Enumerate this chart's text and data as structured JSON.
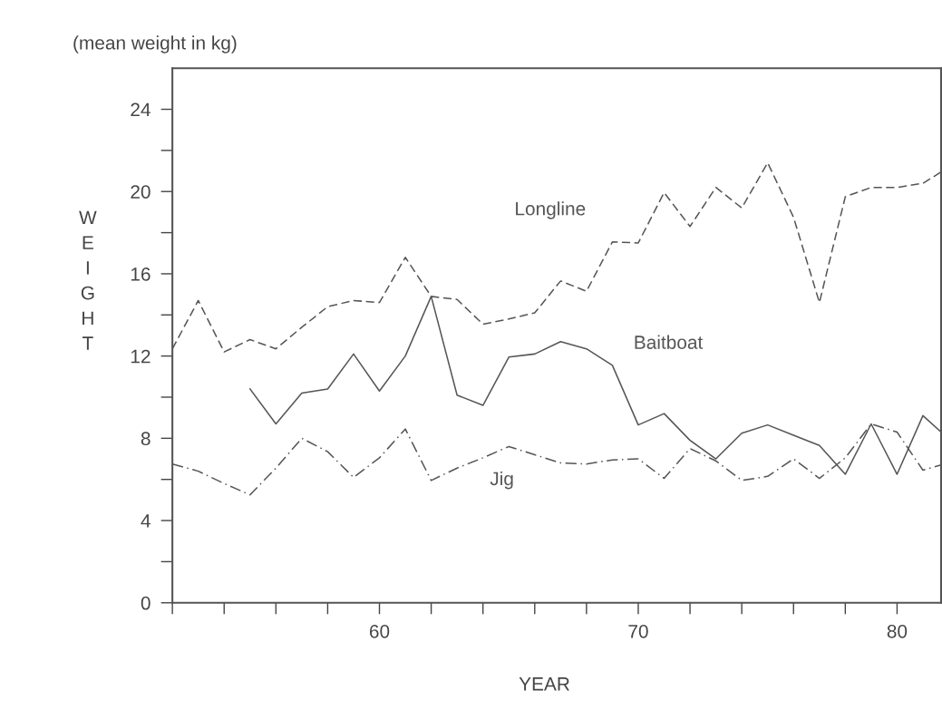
{
  "chart_data": {
    "type": "line",
    "title": "(mean weight in kg)",
    "xlabel": "YEAR",
    "ylabel": "WEIGHT",
    "xlim": [
      52,
      81.7
    ],
    "ylim": [
      0,
      26
    ],
    "xticks": [
      {
        "value": 52,
        "label": null
      },
      {
        "value": 54,
        "label": null
      },
      {
        "value": 56,
        "label": null
      },
      {
        "value": 58,
        "label": null
      },
      60,
      {
        "value": 62,
        "label": null
      },
      {
        "value": 64,
        "label": null
      },
      {
        "value": 66,
        "label": null
      },
      {
        "value": 68,
        "label": null
      },
      70,
      {
        "value": 72,
        "label": null
      },
      {
        "value": 74,
        "label": null
      },
      {
        "value": 76,
        "label": null
      },
      {
        "value": 78,
        "label": null
      },
      80
    ],
    "yticks": [
      0,
      {
        "value": 2,
        "label": null
      },
      4,
      {
        "value": 6,
        "label": null
      },
      8,
      {
        "value": 10,
        "label": null
      },
      12,
      {
        "value": 14,
        "label": null
      },
      16,
      {
        "value": 18,
        "label": null
      },
      20,
      {
        "value": 22,
        "label": null
      },
      24
    ],
    "grid": false,
    "legend": false,
    "marker": "none",
    "series": [
      {
        "name": "Longline",
        "color": "#555555",
        "line_style": "dashed",
        "x": [
          52,
          53,
          54,
          55,
          56,
          57,
          58,
          59,
          60,
          61,
          62,
          63,
          64,
          65,
          66,
          67,
          68,
          69,
          70,
          71,
          72,
          73,
          74,
          75,
          76,
          77,
          78,
          79,
          80,
          81,
          81.7
        ],
        "values": [
          12.35,
          14.7,
          12.2,
          12.8,
          12.35,
          13.4,
          14.4,
          14.7,
          14.6,
          16.8,
          14.9,
          14.75,
          13.55,
          13.8,
          14.1,
          15.65,
          15.15,
          17.55,
          17.5,
          19.95,
          18.3,
          20.2,
          19.2,
          21.4,
          18.75,
          14.6,
          19.75,
          20.2,
          20.2,
          20.4,
          20.95
        ]
      },
      {
        "name": "Baitboat",
        "color": "#555555",
        "line_style": "solid",
        "x": [
          55,
          56,
          57,
          58,
          59,
          60,
          61,
          62,
          63,
          64,
          65,
          66,
          67,
          68,
          69,
          70,
          71,
          72,
          73,
          74,
          75,
          76,
          77,
          78,
          79,
          80,
          81,
          81.7
        ],
        "values": [
          10.4,
          8.7,
          10.2,
          10.4,
          12.1,
          10.3,
          12.0,
          14.9,
          10.1,
          9.6,
          11.95,
          12.1,
          12.7,
          12.35,
          11.55,
          8.65,
          9.2,
          7.9,
          7.0,
          8.25,
          8.65,
          8.15,
          7.65,
          6.25,
          8.7,
          6.25,
          9.1,
          8.3
        ]
      },
      {
        "name": "Jig",
        "color": "#555555",
        "line_style": "dashdot",
        "x": [
          52,
          53,
          54,
          55,
          56,
          57,
          58,
          59,
          60,
          61,
          62,
          63,
          64,
          65,
          66,
          67,
          68,
          69,
          70,
          71,
          72,
          73,
          74,
          75,
          76,
          77,
          78,
          79,
          80,
          81,
          81.7
        ],
        "values": [
          6.75,
          6.4,
          5.8,
          5.25,
          6.55,
          8.0,
          7.35,
          6.1,
          7.05,
          8.45,
          5.95,
          6.55,
          7.05,
          7.6,
          7.2,
          6.8,
          6.75,
          6.95,
          7.0,
          6.05,
          7.5,
          6.9,
          5.95,
          6.15,
          7.0,
          6.05,
          7.05,
          8.7,
          8.3,
          6.45,
          6.7
        ]
      }
    ]
  }
}
